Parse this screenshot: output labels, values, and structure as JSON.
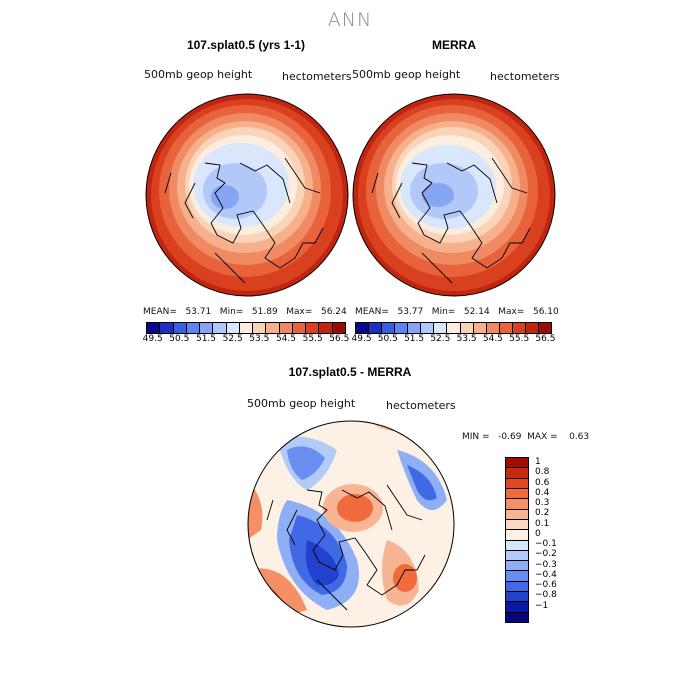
{
  "title": "ANN",
  "panels": [
    {
      "title": "107.splat0.5 (yrs 1-1)",
      "field_label": "500mb  geop  height",
      "units_label": "hectometers",
      "mean": "53.71",
      "min": "51.89",
      "max": "56.24",
      "stats_text": "MEAN=   53.71   Min=   51.89   Max=   56.24"
    },
    {
      "title": "MERRA",
      "field_label": "500mb  geop  height",
      "units_label": "hectometers",
      "mean": "53.77",
      "min": "52.14",
      "max": "56.10",
      "stats_text": "MEAN=   53.77   Min=   52.14   Max=   56.10"
    },
    {
      "title": "107.splat0.5 - MERRA",
      "field_label": "500mb  geop  height",
      "units_label": "hectometers",
      "min": "-0.69",
      "max": "0.63",
      "stats_text": "MIN =   -0.69  MAX =    0.63"
    }
  ],
  "abs_colorbar": {
    "tick_labels": [
      "49.5",
      "50.5",
      "51.5",
      "52.5",
      "53.5",
      "54.5",
      "55.5",
      "56.5"
    ],
    "colors": [
      "#08088a",
      "#1c2fc0",
      "#3b5ee0",
      "#5d84ef",
      "#86a6f4",
      "#b1c8f8",
      "#d9e6fb",
      "#fbeee0",
      "#fbd3b8",
      "#f7b08c",
      "#f08a62",
      "#e8623c",
      "#d9401f",
      "#c02510",
      "#9a0c06"
    ]
  },
  "diff_colorbar": {
    "labels": [
      "1",
      "0.8",
      "0.6",
      "0.4",
      "0.3",
      "0.2",
      "0.1",
      "0",
      "−0.1",
      "−0.2",
      "−0.3",
      "−0.4",
      "−0.6",
      "−0.8",
      "−1"
    ],
    "colors": [
      "#a10d06",
      "#c92810",
      "#e3481f",
      "#f06a3c",
      "#f58f65",
      "#f8b593",
      "#fbd8c2",
      "#fdf0e4",
      "#d7e6fb",
      "#b3cbf8",
      "#8eaef5",
      "#6a8ef0",
      "#4169e6",
      "#2142cc",
      "#0b18a0",
      "#06067a"
    ]
  }
}
